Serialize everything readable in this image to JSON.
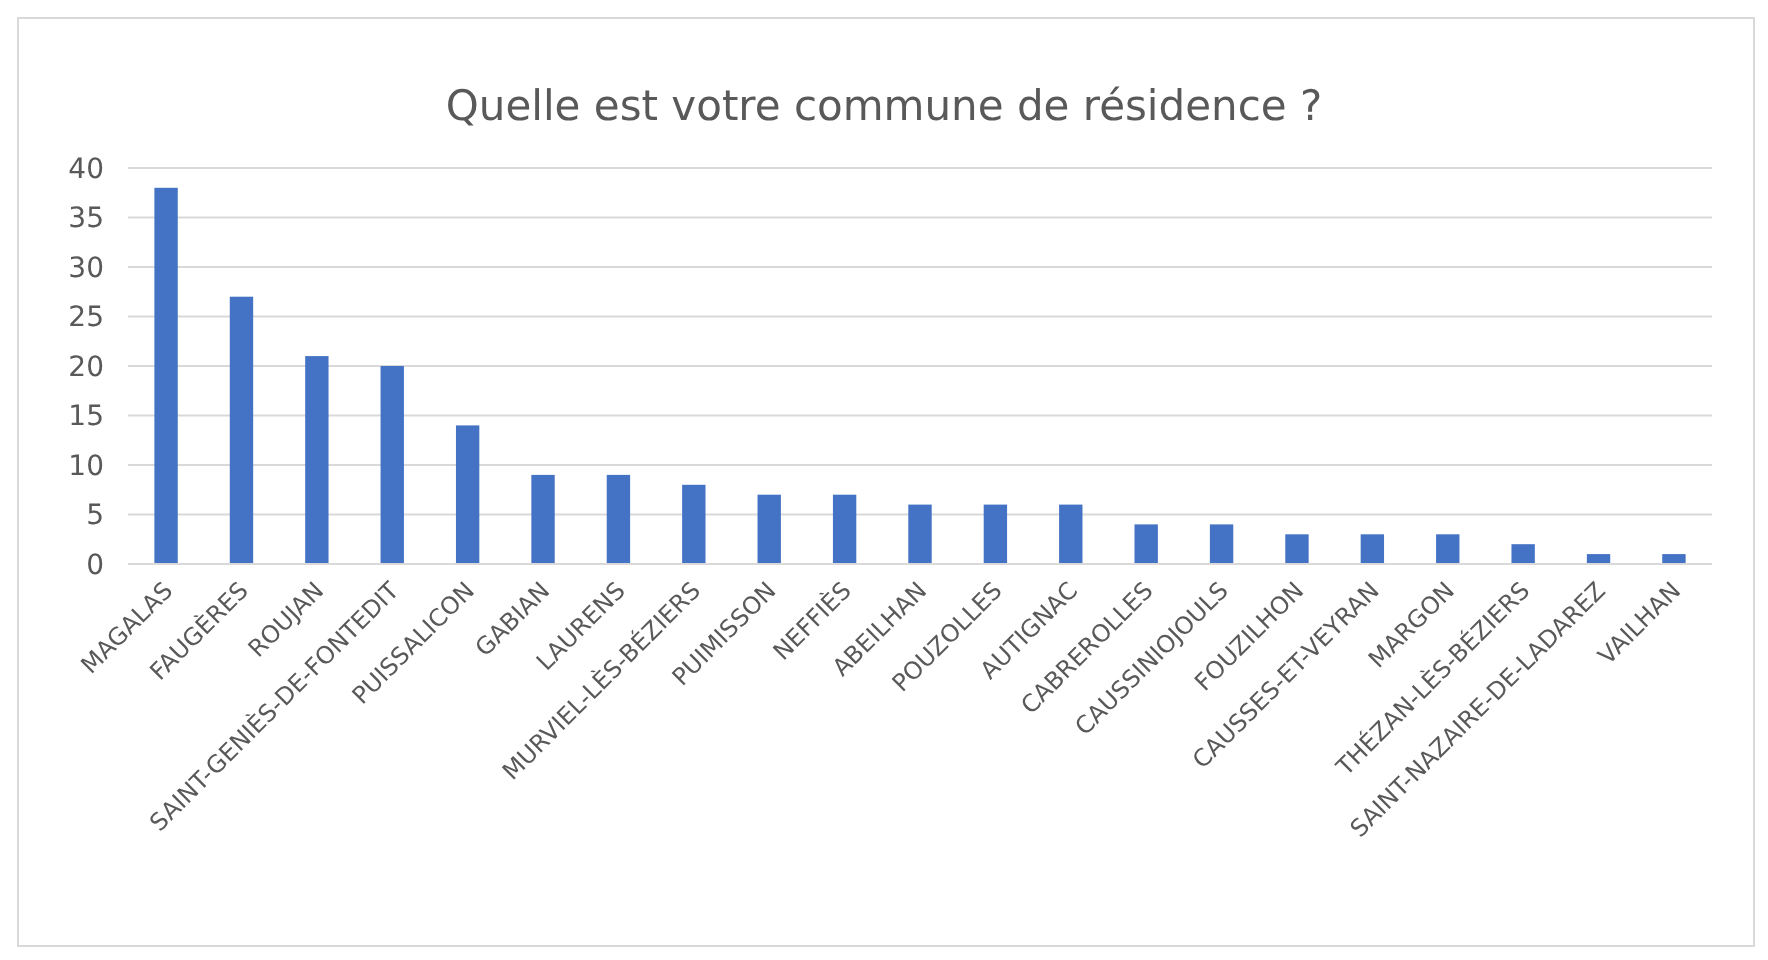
{
  "chart_data": {
    "type": "bar",
    "title": "Quelle est votre commune de résidence ?",
    "categories": [
      "MAGALAS",
      "FAUGÈRES",
      "ROUJAN",
      "SAINT-GENIÈS-DE-FONTEDIT",
      "PUISSALICON",
      "GABIAN",
      "LAURENS",
      "MURVIEL-LÈS-BÉZIERS",
      "PUIMISSON",
      "NEFFIÈS",
      "ABEILHAN",
      "POUZOLLES",
      "AUTIGNAC",
      "CABREROLLES",
      "CAUSSINIOJOULS",
      "FOUZILHON",
      "CAUSSES-ET-VEYRAN",
      "MARGON",
      "THÉZAN-LÈS-BÉZIERS",
      "SAINT-NAZAIRE-DE-LADAREZ",
      "VAILHAN"
    ],
    "values": [
      38,
      27,
      21,
      20,
      14,
      9,
      9,
      8,
      7,
      7,
      6,
      6,
      6,
      4,
      4,
      3,
      3,
      3,
      2,
      1,
      1
    ],
    "color": "#4472c4",
    "ylim": [
      0,
      40
    ],
    "yticks": [
      0,
      5,
      10,
      15,
      20,
      25,
      30,
      35,
      40
    ],
    "grid": "y"
  }
}
